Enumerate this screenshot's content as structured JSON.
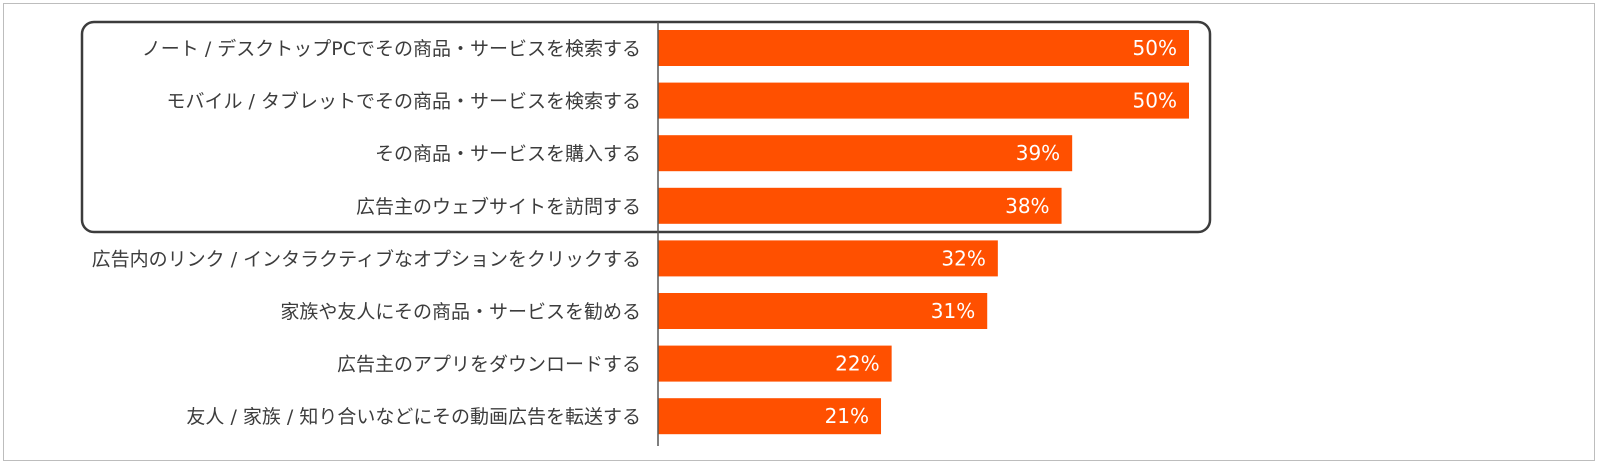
{
  "colors": {
    "bar": "#ff5000",
    "axis": "#555555",
    "highlight_border": "#3c3c3c",
    "frame": "#bdbdbd"
  },
  "chart_data": {
    "type": "bar",
    "orientation": "horizontal",
    "categories": [
      "ノート / デスクトップPCでその商品・サービスを検索する",
      "モバイル / タブレットでその商品・サービスを検索する",
      "その商品・サービスを購入する",
      "広告主のウェブサイトを訪問する",
      "広告内のリンク / インタラクティブなオプションをクリックする",
      "家族や友人にその商品・サービスを勧める",
      "広告主のアプリをダウンロードする",
      "友人 / 家族 / 知り合いなどにその動画広告を転送する"
    ],
    "values": [
      50,
      50,
      39,
      38,
      32,
      31,
      22,
      21
    ],
    "value_labels": [
      "50%",
      "50%",
      "39%",
      "38%",
      "32%",
      "31%",
      "22%",
      "21%"
    ],
    "unit": "%",
    "xlim": [
      0,
      100
    ],
    "grid": false,
    "highlighted_categories": [
      0,
      1,
      2,
      3
    ]
  }
}
